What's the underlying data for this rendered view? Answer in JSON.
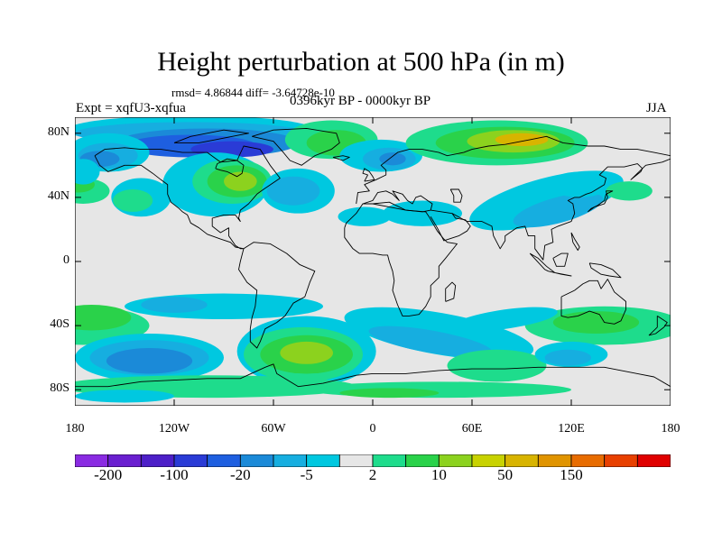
{
  "title": "Height perturbation at 500 hPa (in m)",
  "stats": "rmsd= 4.86844 diff= -3.64728e-10",
  "left_label": "Expt = xqfU3-xqfua",
  "center_label": "0396kyr BP - 0000kyr BP",
  "right_label": "JJA",
  "lat_ticks": [
    {
      "label": "80N",
      "lat": 80
    },
    {
      "label": "40N",
      "lat": 40
    },
    {
      "label": "0",
      "lat": 0
    },
    {
      "label": "40S",
      "lat": -40
    },
    {
      "label": "80S",
      "lat": -80
    }
  ],
  "lon_ticks": [
    {
      "label": "180",
      "lon": -180
    },
    {
      "label": "120W",
      "lon": -120
    },
    {
      "label": "60W",
      "lon": -60
    },
    {
      "label": "0",
      "lon": 0
    },
    {
      "label": "60E",
      "lon": 60
    },
    {
      "label": "120E",
      "lon": 120
    },
    {
      "label": "180",
      "lon": 180
    }
  ],
  "colorbar": {
    "colors": [
      "#8a2be2",
      "#6a1fd0",
      "#4d1fc8",
      "#2a3bd6",
      "#1e5fe0",
      "#1b8ad8",
      "#16aee0",
      "#00c8e0",
      "#e6e6e6",
      "#1edc8c",
      "#2ad24a",
      "#8cd21e",
      "#c8d200",
      "#d8b400",
      "#e09400",
      "#e86c00",
      "#e84000",
      "#e00000"
    ],
    "labels": [
      {
        "text": "-200",
        "index": 1
      },
      {
        "text": "-100",
        "index": 3
      },
      {
        "text": "-20",
        "index": 5
      },
      {
        "text": "-5",
        "index": 7
      },
      {
        "text": "2",
        "index": 9
      },
      {
        "text": "10",
        "index": 11
      },
      {
        "text": "50",
        "index": 13
      },
      {
        "text": "150",
        "index": 15
      }
    ]
  },
  "colors": {
    "neutral": "#e6e6e6",
    "cyan": "#00c8e0",
    "light_blue": "#16aee0",
    "blue": "#1b8ad8",
    "dark_blue": "#1e5fe0",
    "navy": "#2a3bd6",
    "teal_green": "#1edc8c",
    "green": "#2ad24a",
    "yellow_green": "#8cd21e",
    "yellow": "#c8d200",
    "gold": "#d8b400",
    "orange": "#e09400"
  }
}
